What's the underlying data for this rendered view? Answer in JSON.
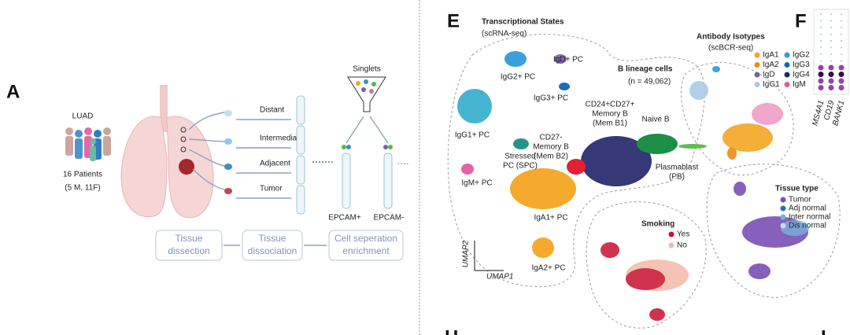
{
  "panel_a": {
    "letter": "A",
    "cohort": "LUAD",
    "patients": [
      "16 Patients",
      "(5 M, 11F)"
    ],
    "tissues": [
      "Distant",
      "Intermediate",
      "Adjacent",
      "Tumor"
    ],
    "singlets": "Singlets",
    "fractions": [
      "EPCAM+",
      "EPCAM-"
    ],
    "steps": [
      [
        "Tissue",
        "dissection"
      ],
      [
        "Tissue",
        "dissociation"
      ],
      [
        "Cell seperation",
        "enrichment"
      ]
    ]
  },
  "panel_e": {
    "letter": "E",
    "title": "Transcriptional States",
    "subtitle": "(scRNA-seq)",
    "heading": "B lineage cells",
    "count": "(n = 49,062)",
    "clusters": [
      {
        "lines": [
          "IgG2+ PC"
        ],
        "color": "#2f9bd6"
      },
      {
        "lines": [
          "IgD+ PC"
        ],
        "color": "#7b5fb0"
      },
      {
        "lines": [
          "IgG3+ PC"
        ],
        "color": "#1167b1"
      },
      {
        "lines": [
          "CD24+CD27+",
          "Memory B",
          "(Mem B1)"
        ],
        "color": "#2c2f6e"
      },
      {
        "lines": [
          "Naive B"
        ],
        "color": "#0f8a3c"
      },
      {
        "lines": [
          "CD27-",
          "Memory B",
          "(Mem B2)"
        ],
        "color": "#e3162a"
      },
      {
        "lines": [
          "IgG1+ PC"
        ],
        "color": "#3bb0cf"
      },
      {
        "lines": [
          "Stressed",
          "PC (SPC)"
        ],
        "color": "#1a8f7f"
      },
      {
        "lines": [
          "Plasmablast",
          "(PB)"
        ],
        "color": "#57b847"
      },
      {
        "lines": [
          "IgM+ PC"
        ],
        "color": "#e55aa0"
      },
      {
        "lines": [
          "IgA1+ PC"
        ],
        "color": "#f5a623"
      },
      {
        "lines": [
          "IgA2+ PC"
        ],
        "color": "#f5a623"
      }
    ],
    "axes": [
      "UMAP2",
      "UMAP1"
    ],
    "isotypes": {
      "title": "Antibody Isotypes",
      "subtitle": "(scBCR-seq)",
      "legend": [
        {
          "name": "IgA1",
          "color": "#f5a623"
        },
        {
          "name": "IgG2",
          "color": "#2f9bd6"
        },
        {
          "name": "IgA2",
          "color": "#f08a1c"
        },
        {
          "name": "IgG3",
          "color": "#1167b1"
        },
        {
          "name": "IgD",
          "color": "#7b5fb0"
        },
        {
          "name": "IgG4",
          "color": "#1f2a5c"
        },
        {
          "name": "IgG1",
          "color": "#a9cbe8"
        },
        {
          "name": "IgM",
          "color": "#e55aa0"
        }
      ]
    },
    "smoking": {
      "title": "Smoking",
      "legend": [
        {
          "name": "Yes",
          "color": "#c8102e"
        },
        {
          "name": "No",
          "color": "#f4b9a6"
        }
      ]
    },
    "tissue": {
      "title": "Tissue type",
      "legend": [
        {
          "name": "Tumor",
          "color": "#7a4fb5"
        },
        {
          "name": "Adj normal",
          "color": "#2f6fb0"
        },
        {
          "name": "Inter normal",
          "color": "#6ab6dc"
        },
        {
          "name": "Dis normal",
          "color": "#c4def0"
        }
      ]
    }
  },
  "panel_f": {
    "letter": "F",
    "genes": [
      "MS4A1",
      "CD19",
      "BANK1"
    ]
  },
  "next_panels": [
    "H",
    "I"
  ]
}
